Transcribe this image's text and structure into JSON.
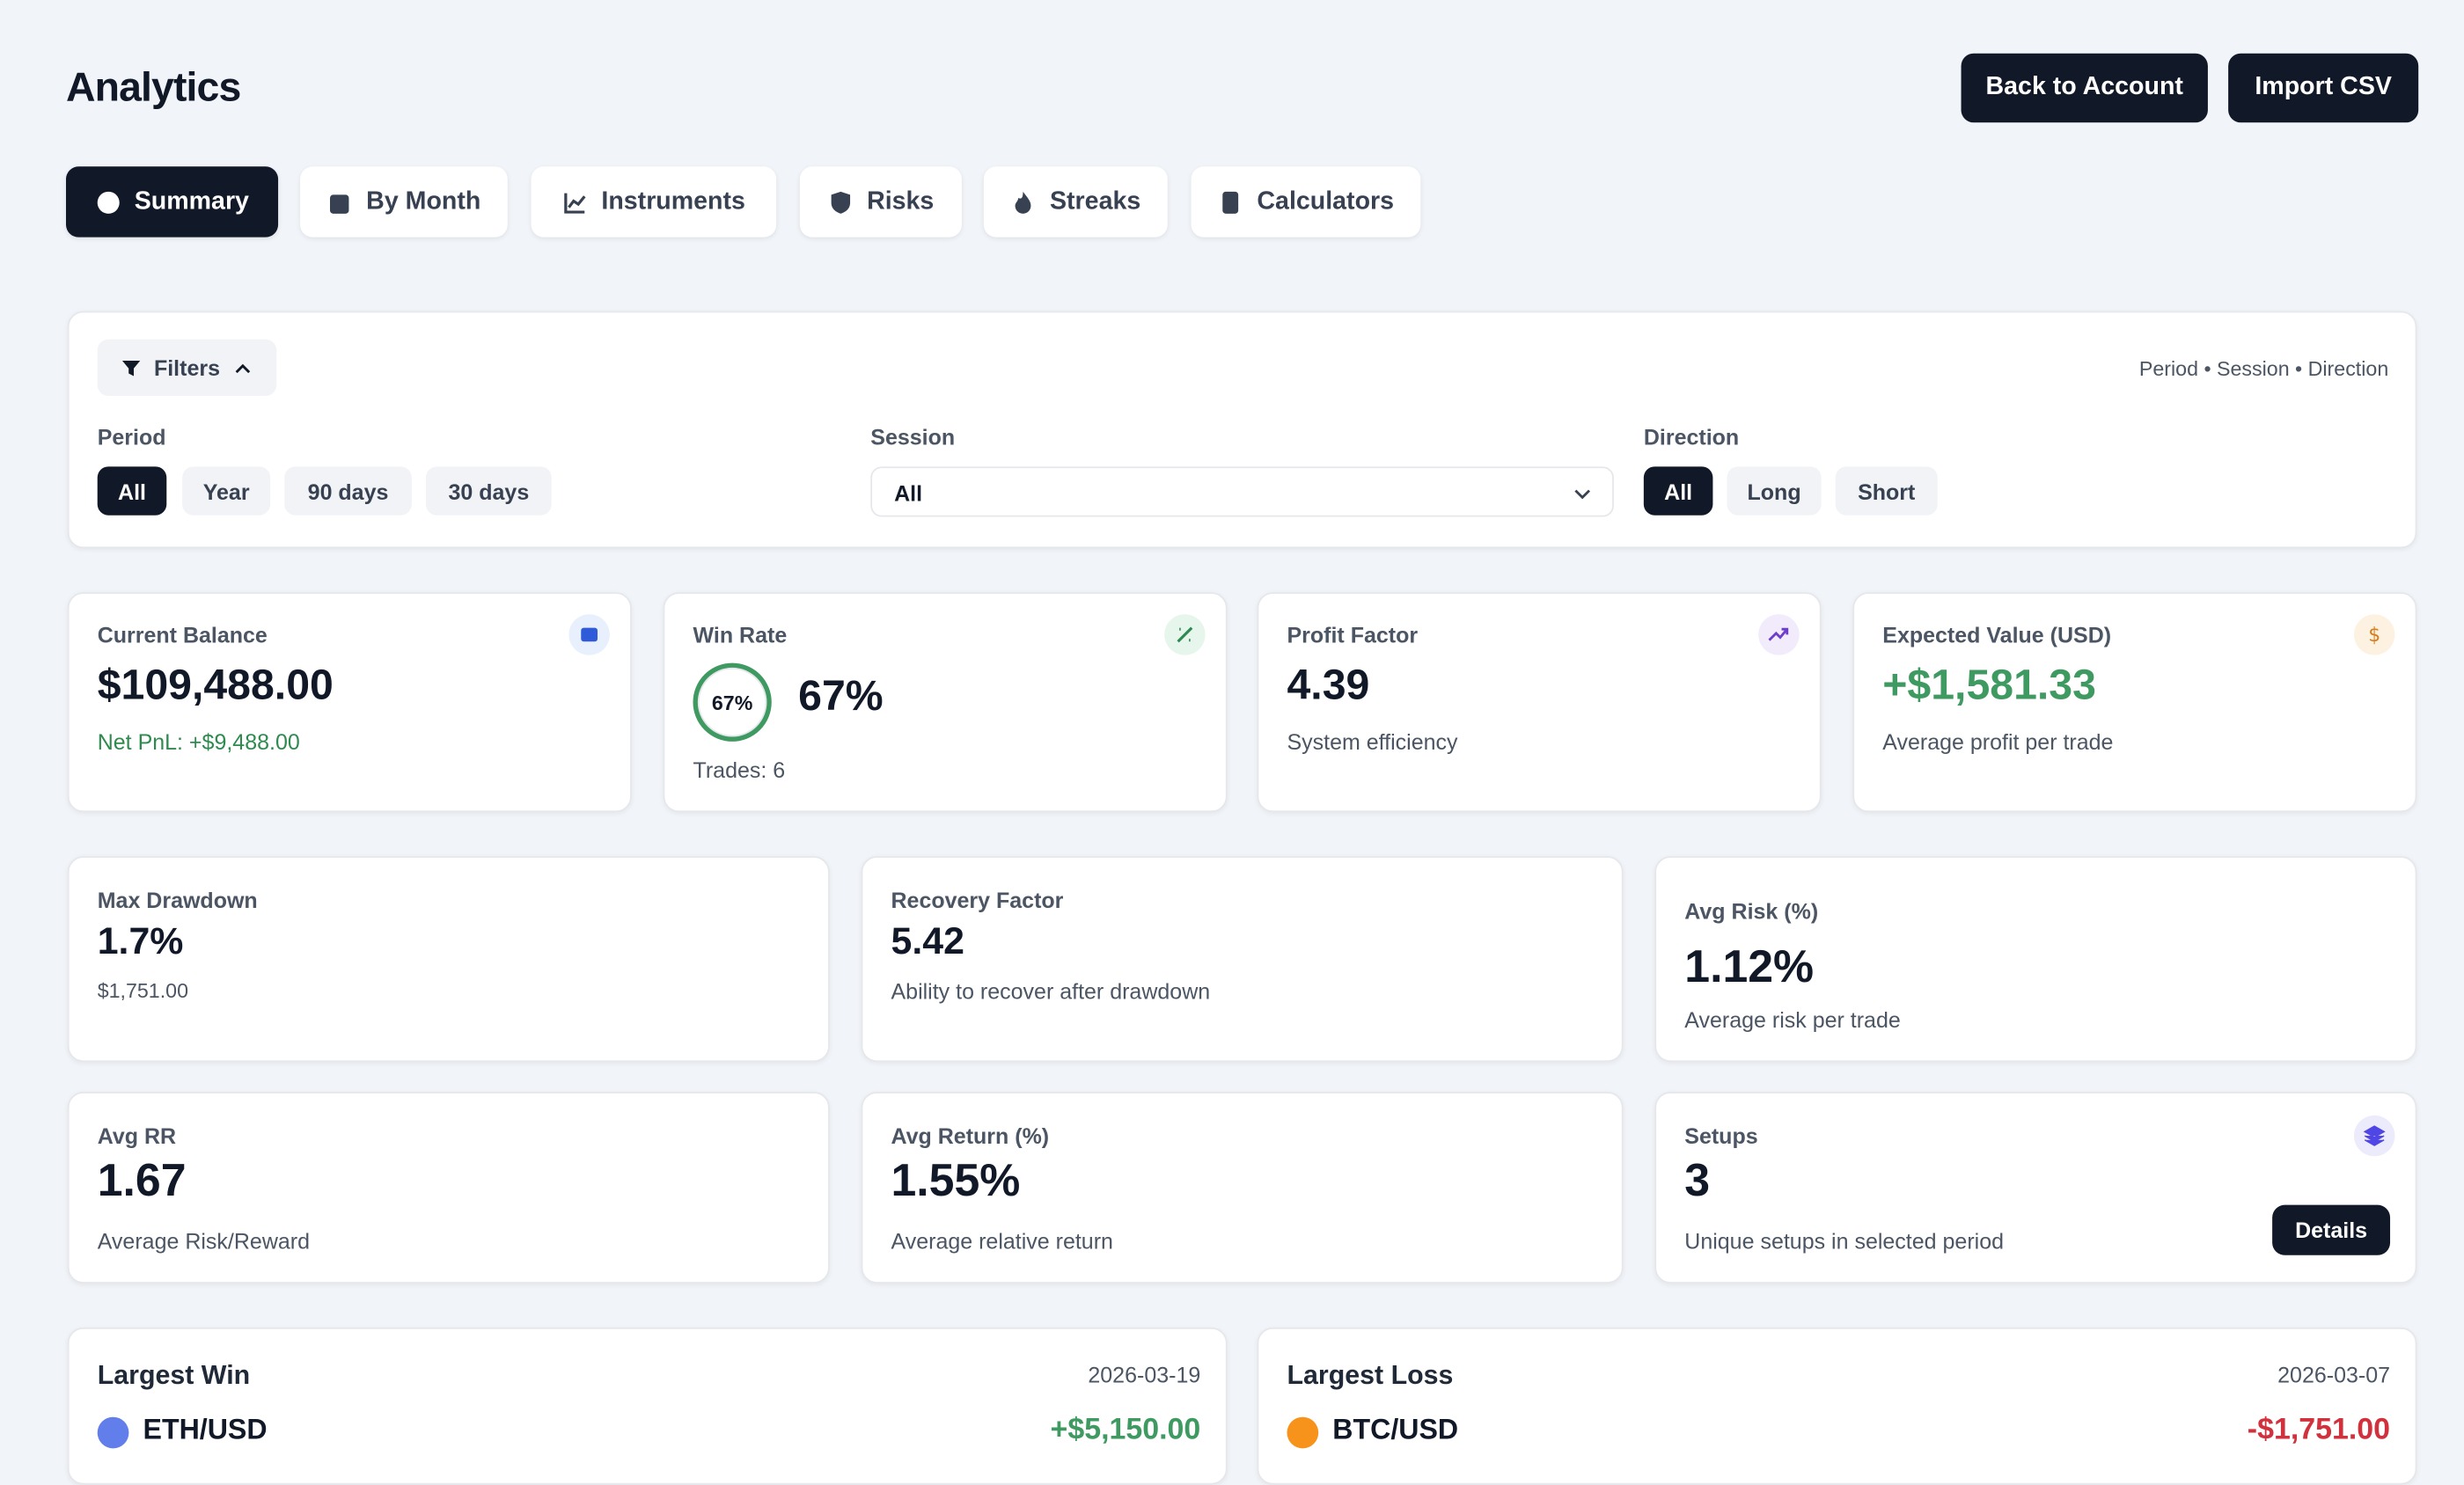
{
  "header": {
    "title": "Analytics",
    "buttons": [
      "Back to Account",
      "Import CSV"
    ]
  },
  "tabs": [
    "Summary",
    "By Month",
    "Instruments",
    "Risks",
    "Streaks",
    "Calculators"
  ],
  "filters": {
    "toggle": "Filters",
    "summary": "Period • Session • Direction",
    "period": {
      "label": "Period",
      "options": [
        "All",
        "Year",
        "90 days",
        "30 days"
      ]
    },
    "session": {
      "label": "Session",
      "value": "All"
    },
    "direction": {
      "label": "Direction",
      "options": [
        "All",
        "Long",
        "Short"
      ]
    }
  },
  "kpis": [
    {
      "label": "Current Balance",
      "value": "$109,488.00",
      "note": "Net PnL: +$9,488.00"
    },
    {
      "label": "Win Rate",
      "ring": "67%",
      "value": "67%",
      "note": "Trades: 6"
    },
    {
      "label": "Profit Factor",
      "value": "4.39",
      "note": "System efficiency"
    },
    {
      "label": "Expected Value (USD)",
      "value": "+$1,581.33",
      "note": "Average profit per trade"
    }
  ],
  "metrics": [
    {
      "label": "Max Drawdown",
      "value": "1.7%",
      "note": "$1,751.00"
    },
    {
      "label": "Recovery Factor",
      "value": "5.42",
      "note": "Ability to recover after drawdown"
    },
    {
      "label": "Avg Risk (%)",
      "value": "1.12%",
      "note": "Average risk per trade"
    },
    {
      "label": "Avg RR",
      "value": "1.67",
      "note": "Average Risk/Reward"
    },
    {
      "label": "Avg Return (%)",
      "value": "1.55%",
      "note": "Average relative return"
    },
    {
      "label": "Setups",
      "value": "3",
      "note": "Unique setups in selected period",
      "button": "Details"
    }
  ],
  "extremes": [
    {
      "title": "Largest Win",
      "date": "2026-03-19",
      "symbol": "ETH/USD",
      "amount": "+$5,150.00"
    },
    {
      "title": "Largest Loss",
      "date": "2026-03-07",
      "symbol": "BTC/USD",
      "amount": "-$1,751.00"
    }
  ]
}
